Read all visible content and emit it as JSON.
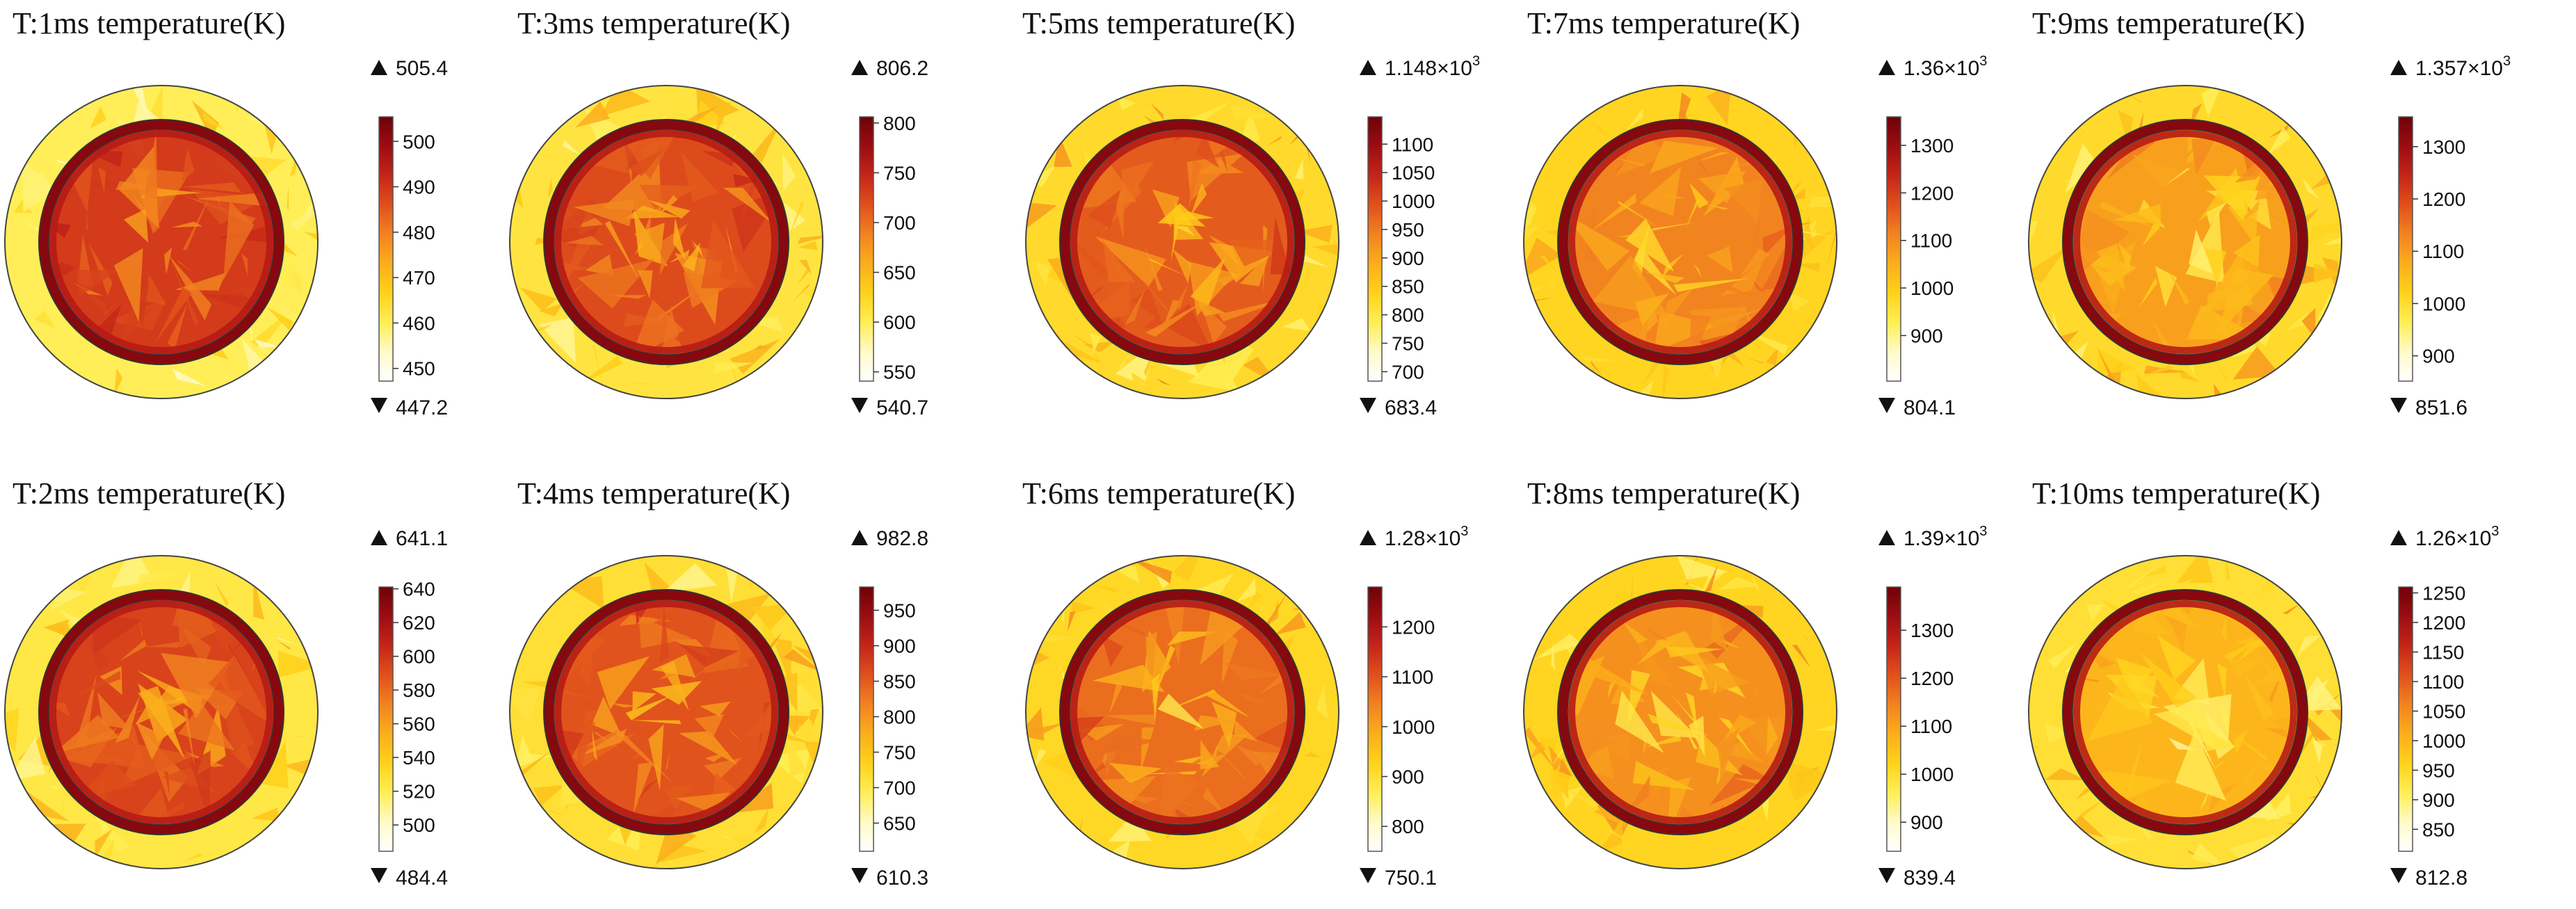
{
  "figure": {
    "colormap": [
      "#ffffff",
      "#fffbc8",
      "#ffee55",
      "#ffd21a",
      "#fbae1c",
      "#f28220",
      "#e0501c",
      "#c42518",
      "#9c0d12",
      "#6e0209"
    ],
    "panels": [
      {
        "id": "t1",
        "title": "T:1ms  temperature(K)",
        "max_label": "505.4",
        "max_exp": "",
        "min_label": "447.2",
        "ticks": [
          "500",
          "490",
          "480",
          "470",
          "460",
          "450"
        ],
        "max": 505.4,
        "min": 447.2,
        "ring_level": 0.22,
        "core_level": 0.72
      },
      {
        "id": "t3",
        "title": "T:3ms  temperature(K)",
        "max_label": "806.2",
        "max_exp": "",
        "min_label": "540.7",
        "ticks": [
          "800",
          "750",
          "700",
          "650",
          "600",
          "550"
        ],
        "max": 806.2,
        "min": 540.7,
        "ring_level": 0.26,
        "core_level": 0.68
      },
      {
        "id": "t5",
        "title": "T:5ms  temperature(K)",
        "max_label": "1.148×10",
        "max_exp": "3",
        "min_label": "683.4",
        "ticks": [
          "1100",
          "1050",
          "1000",
          "950",
          "900",
          "850",
          "800",
          "750",
          "700"
        ],
        "max": 1148,
        "min": 683.4,
        "ring_level": 0.3,
        "core_level": 0.64
      },
      {
        "id": "t7",
        "title": "T:7ms  temperature(K)",
        "max_label": "1.36×10",
        "max_exp": "3",
        "min_label": "804.1",
        "ticks": [
          "1300",
          "1200",
          "1100",
          "1000",
          "900"
        ],
        "max": 1360,
        "min": 804.1,
        "ring_level": 0.32,
        "core_level": 0.55
      },
      {
        "id": "t9",
        "title": "T:9ms  temperature(K)",
        "max_label": "1.357×10",
        "max_exp": "3",
        "min_label": "851.6",
        "ticks": [
          "1300",
          "1200",
          "1100",
          "1000",
          "900"
        ],
        "max": 1357,
        "min": 851.6,
        "ring_level": 0.3,
        "core_level": 0.48
      },
      {
        "id": "t2",
        "title": "T:2ms  temperature(K)",
        "max_label": "641.1",
        "max_exp": "",
        "min_label": "484.4",
        "ticks": [
          "640",
          "620",
          "600",
          "580",
          "560",
          "540",
          "520",
          "500"
        ],
        "max": 641.1,
        "min": 484.4,
        "ring_level": 0.25,
        "core_level": 0.7
      },
      {
        "id": "t4",
        "title": "T:4ms  temperature(K)",
        "max_label": "982.8",
        "max_exp": "",
        "min_label": "610.3",
        "ticks": [
          "950",
          "900",
          "850",
          "800",
          "750",
          "700",
          "650"
        ],
        "max": 982.8,
        "min": 610.3,
        "ring_level": 0.28,
        "core_level": 0.66
      },
      {
        "id": "t6",
        "title": "T:6ms  temperature(K)",
        "max_label": "1.28×10",
        "max_exp": "3",
        "min_label": "750.1",
        "ticks": [
          "1200",
          "1100",
          "1000",
          "900",
          "800"
        ],
        "max": 1280,
        "min": 750.1,
        "ring_level": 0.31,
        "core_level": 0.6
      },
      {
        "id": "t8",
        "title": "T:8ms  temperature(K)",
        "max_label": "1.39×10",
        "max_exp": "3",
        "min_label": "839.4",
        "ticks": [
          "1300",
          "1200",
          "1100",
          "1000",
          "900"
        ],
        "max": 1390,
        "min": 839.4,
        "ring_level": 0.32,
        "core_level": 0.52
      },
      {
        "id": "t10",
        "title": "T:10ms  temperature(K)",
        "max_label": "1.26×10",
        "max_exp": "3",
        "min_label": "812.8",
        "ticks": [
          "1250",
          "1200",
          "1150",
          "1100",
          "1050",
          "1000",
          "950",
          "900",
          "850"
        ],
        "max": 1260,
        "min": 812.8,
        "ring_level": 0.28,
        "core_level": 0.42
      }
    ]
  }
}
